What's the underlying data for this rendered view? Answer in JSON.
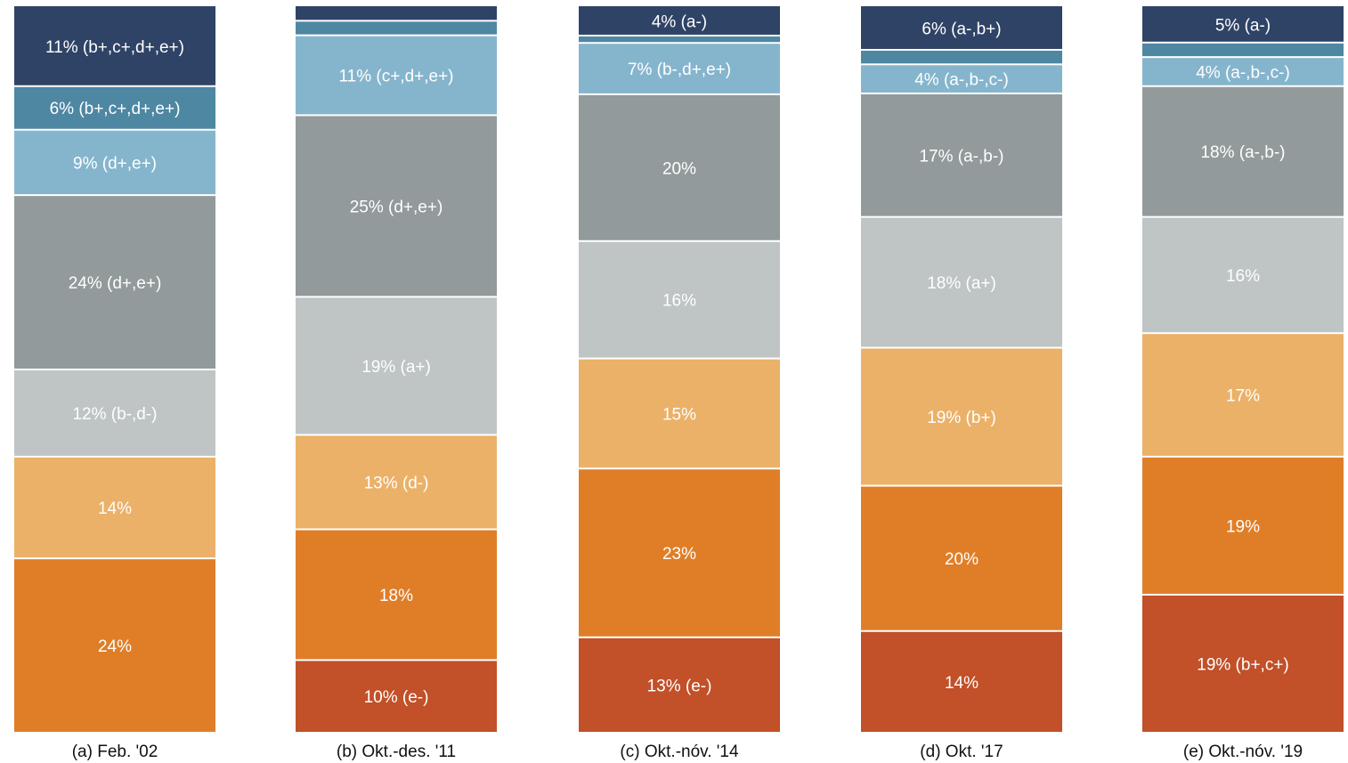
{
  "chart_data": {
    "type": "bar",
    "stacked": "100%",
    "categories": [
      "(a) Feb. '02",
      "(b) Okt.-des. '11",
      "(c) Okt.-nóv. '14",
      "(d) Okt. '17",
      "(e) Okt.-nóv. '19"
    ],
    "series_colors": [
      "#c25028",
      "#e07e28",
      "#ebb168",
      "#bec5c4",
      "#929a9b",
      "#85b5cd",
      "#4e87a2",
      "#2f4366"
    ],
    "series": [
      {
        "values": [
          0,
          10,
          13,
          14,
          19
        ],
        "labels": [
          "",
          "10% (e-)",
          "13% (e-)",
          "14%",
          "19% (b+,c+)"
        ]
      },
      {
        "values": [
          24,
          18,
          23,
          20,
          19
        ],
        "labels": [
          "24%",
          "18%",
          "23%",
          "20%",
          "19%"
        ]
      },
      {
        "values": [
          14,
          13,
          15,
          19,
          17
        ],
        "labels": [
          "14%",
          "13% (d-)",
          "15%",
          "19% (b+)",
          "17%"
        ]
      },
      {
        "values": [
          12,
          19,
          16,
          18,
          16
        ],
        "labels": [
          "12% (b-,d-)",
          "19% (a+)",
          "16%",
          "18% (a+)",
          "16%"
        ]
      },
      {
        "values": [
          24,
          25,
          20,
          17,
          18
        ],
        "labels": [
          "24% (d+,e+)",
          "25% (d+,e+)",
          "20%",
          "17% (a-,b-)",
          "18% (a-,b-)"
        ]
      },
      {
        "values": [
          9,
          11,
          7,
          4,
          4
        ],
        "labels": [
          "9% (d+,e+)",
          "11% (c+,d+,e+)",
          "7% (b-,d+,e+)",
          "4% (a-,b-,c-)",
          "4% (a-,b-,c-)"
        ]
      },
      {
        "values": [
          6,
          2,
          1,
          2,
          2
        ],
        "labels": [
          "6% (b+,c+,d+,e+)",
          "",
          "",
          "",
          ""
        ]
      },
      {
        "values": [
          11,
          2,
          4,
          6,
          5
        ],
        "labels": [
          "11% (b+,c+,d+,e+)",
          "",
          "4% (a-)",
          "6% (a-,b+)",
          "5% (a-)"
        ]
      }
    ],
    "ylim": [
      0,
      100
    ],
    "grid": false,
    "legend": "none"
  }
}
